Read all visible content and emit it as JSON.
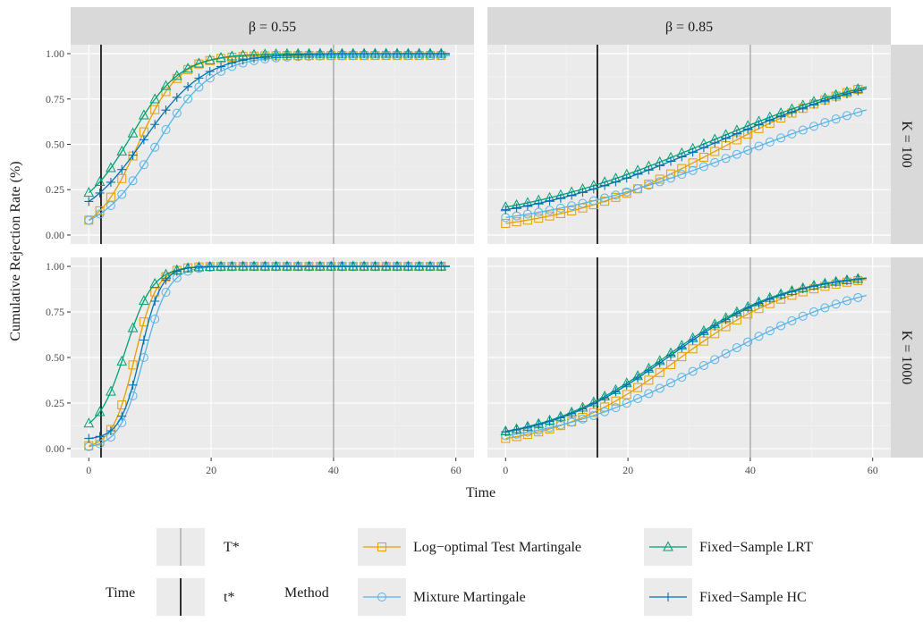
{
  "chart_data": {
    "type": "line",
    "facets": {
      "columns": [
        "β = 0.55",
        "β = 0.85"
      ],
      "rows": [
        "K = 100",
        "K = 1000"
      ]
    },
    "xlabel": "Time",
    "ylabel": "Cumulative Rejection Rate (%)",
    "xlim": [
      0,
      60
    ],
    "ylim": [
      0,
      1
    ],
    "x_ticks": [
      0,
      20,
      40,
      60
    ],
    "y_ticks": [
      0,
      0.25,
      0.5,
      0.75,
      1
    ],
    "y_tick_labels": [
      "0.00",
      "0.25",
      "0.50",
      "0.75",
      "1.00"
    ],
    "grid": true,
    "legend_position": "bottom",
    "vlines": [
      {
        "name": "T*",
        "color": "#9a9a9a",
        "x_by_column": [
          40,
          40
        ]
      },
      {
        "name": "t*",
        "color": "#000000",
        "x_by_column": [
          2,
          15
        ]
      }
    ],
    "series": [
      {
        "name": "Log−optimal Test Martingale",
        "color": "#E69F00",
        "marker": "square",
        "panels": [
          {
            "x0": 8,
            "k": 0.3,
            "start": 0.0,
            "end": 0.99
          },
          {
            "x0": 35,
            "k": 0.075,
            "start": 0.0,
            "end": 0.95
          },
          {
            "x0": 7.5,
            "k": 0.55,
            "start": 0.0,
            "end": 1.0
          },
          {
            "x0": 28,
            "k": 0.1,
            "start": 0.0,
            "end": 0.97
          }
        ]
      },
      {
        "name": "Mixture Martingale",
        "color": "#56B4E9",
        "marker": "circle",
        "panels": [
          {
            "x0": 11,
            "k": 0.22,
            "start": 0.0,
            "end": 0.99
          },
          {
            "x0": 39,
            "k": 0.055,
            "start": 0.0,
            "end": 0.92
          },
          {
            "x0": 9,
            "k": 0.5,
            "start": 0.0,
            "end": 1.0
          },
          {
            "x0": 34,
            "k": 0.075,
            "start": 0.0,
            "end": 0.97
          }
        ]
      },
      {
        "name": "Fixed−Sample LRT",
        "color": "#009E73",
        "marker": "triangle",
        "panels": [
          {
            "x0": 7,
            "k": 0.25,
            "start": 0.1,
            "end": 1.0
          },
          {
            "x0": 33,
            "k": 0.06,
            "start": 0.04,
            "end": 0.98
          },
          {
            "x0": 6,
            "k": 0.45,
            "start": 0.08,
            "end": 1.0
          },
          {
            "x0": 26,
            "k": 0.1,
            "start": 0.03,
            "end": 0.97
          }
        ]
      },
      {
        "name": "Fixed−Sample HC",
        "color": "#0072B2",
        "marker": "plus",
        "panels": [
          {
            "x0": 9,
            "k": 0.2,
            "start": 0.05,
            "end": 1.0
          },
          {
            "x0": 34,
            "k": 0.06,
            "start": 0.03,
            "end": 0.98
          },
          {
            "x0": 8.5,
            "k": 0.6,
            "start": 0.05,
            "end": 1.0
          },
          {
            "x0": 26.5,
            "k": 0.1,
            "start": 0.03,
            "end": 0.97
          }
        ]
      }
    ]
  },
  "legend": {
    "time_title": "Time",
    "method_title": "Method",
    "time_items": [
      "T*",
      "t*"
    ],
    "method_items": [
      "Log−optimal Test Martingale",
      "Fixed−Sample LRT",
      "Mixture Martingale",
      "Fixed−Sample HC"
    ]
  }
}
